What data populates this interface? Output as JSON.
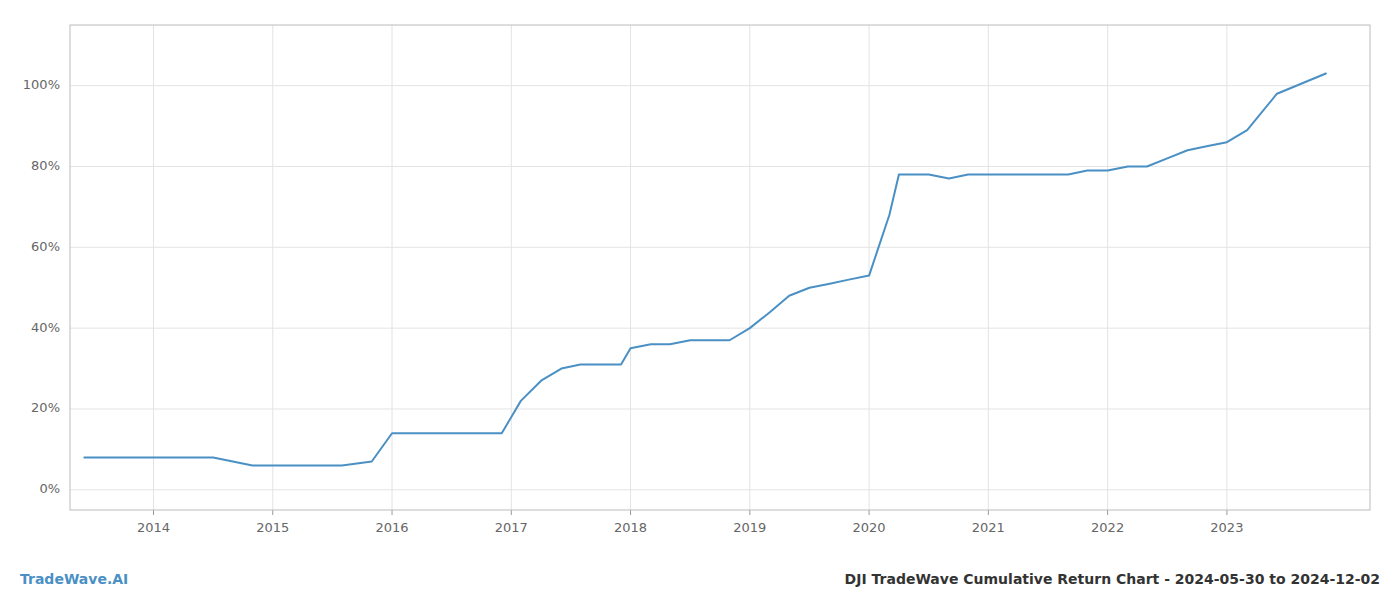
{
  "chart_data": {
    "type": "line",
    "title": "DJI TradeWave Cumulative Return Chart - 2024-05-30 to 2024-12-02",
    "annotations": [
      "TradeWave.AI"
    ],
    "color": "#4a90c4",
    "grid": true,
    "x": [
      2013.42,
      2013.92,
      2014.5,
      2014.83,
      2015.08,
      2015.33,
      2015.58,
      2015.83,
      2016.0,
      2016.17,
      2016.42,
      2016.67,
      2016.92,
      2017.08,
      2017.25,
      2017.42,
      2017.58,
      2017.75,
      2017.92,
      2018.0,
      2018.17,
      2018.33,
      2018.5,
      2018.67,
      2018.83,
      2019.0,
      2019.17,
      2019.33,
      2019.5,
      2019.67,
      2019.83,
      2020.0,
      2020.17,
      2020.25,
      2020.5,
      2020.67,
      2020.83,
      2021.0,
      2021.17,
      2021.33,
      2021.5,
      2021.67,
      2021.83,
      2022.0,
      2022.17,
      2022.33,
      2022.5,
      2022.67,
      2022.83,
      2023.0,
      2023.17,
      2023.42,
      2023.83
    ],
    "values": [
      8,
      8,
      8,
      6,
      6,
      6,
      6,
      7,
      14,
      14,
      14,
      14,
      14,
      22,
      27,
      30,
      31,
      31,
      31,
      35,
      36,
      36,
      37,
      37,
      37,
      40,
      44,
      48,
      50,
      51,
      52,
      53,
      68,
      78,
      78,
      77,
      78,
      78,
      78,
      78,
      78,
      78,
      79,
      79,
      80,
      80,
      82,
      84,
      85,
      86,
      89,
      98,
      103
    ],
    "xlim": [
      2013.3,
      2024.2
    ],
    "xticks": [
      2014,
      2015,
      2016,
      2017,
      2018,
      2019,
      2020,
      2021,
      2022,
      2023
    ],
    "ylim": [
      -5,
      115
    ],
    "yticks": [
      {
        "value": 0,
        "label": "0%"
      },
      {
        "value": 20,
        "label": "20%"
      },
      {
        "value": 40,
        "label": "40%"
      },
      {
        "value": 60,
        "label": "60%"
      },
      {
        "value": 80,
        "label": "80%"
      },
      {
        "value": 100,
        "label": "100%"
      }
    ]
  }
}
